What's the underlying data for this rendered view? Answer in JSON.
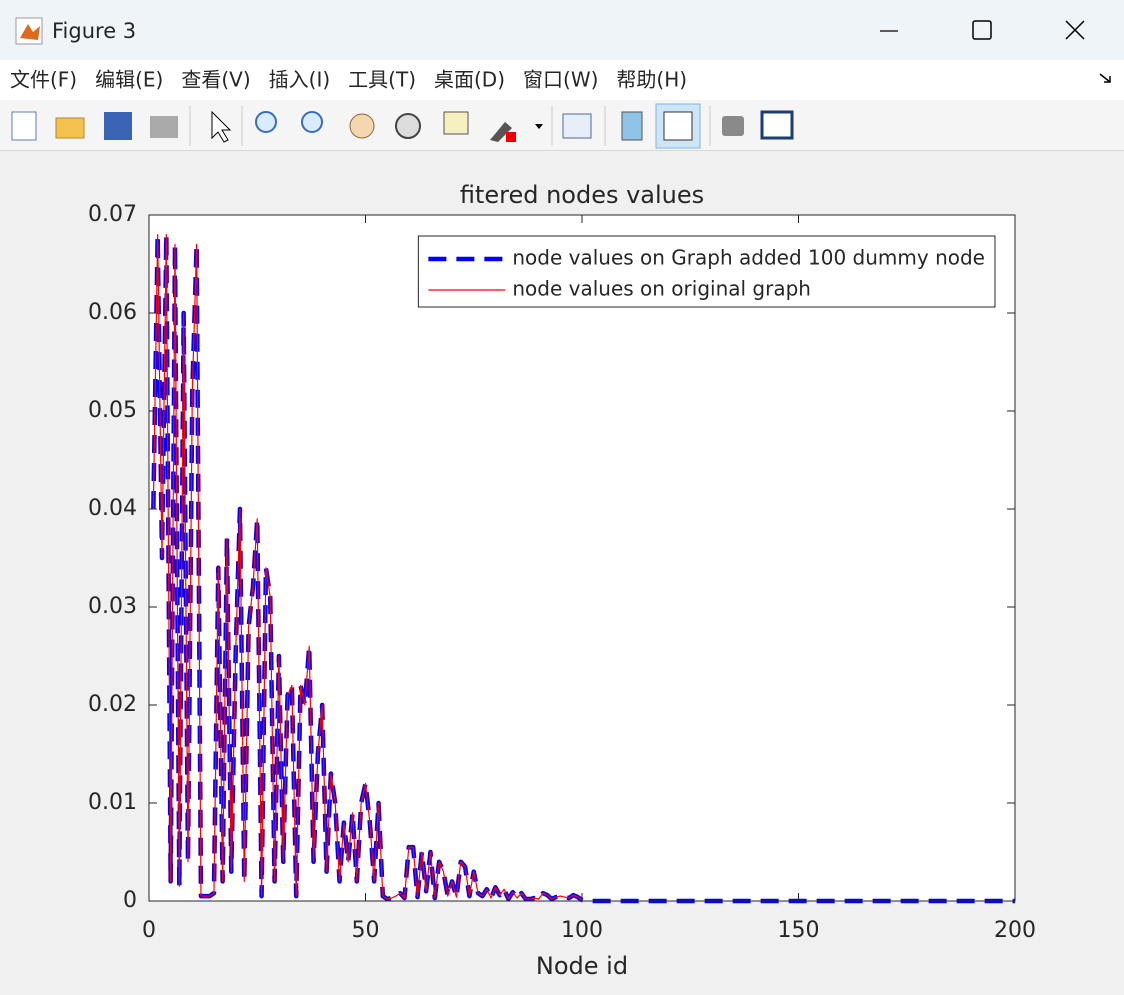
{
  "window": {
    "title": "Figure 3"
  },
  "menu": [
    "文件(F)",
    "编辑(E)",
    "查看(V)",
    "插入(I)",
    "工具(T)",
    "桌面(D)",
    "窗口(W)",
    "帮助(H)"
  ],
  "chart_data": {
    "type": "line",
    "title": "fitered nodes values",
    "xlabel": "Node id",
    "xlim": [
      0,
      200
    ],
    "ylim": [
      0,
      0.07
    ],
    "xticks": [
      0,
      50,
      100,
      150,
      200
    ],
    "yticks": [
      0,
      0.01,
      0.02,
      0.03,
      0.04,
      0.05,
      0.06,
      0.07
    ],
    "grid": false,
    "legend": "northeast",
    "x": [
      1,
      2,
      3,
      4,
      5,
      6,
      7,
      8,
      9,
      10,
      11,
      12,
      13,
      14,
      15,
      16,
      17,
      18,
      19,
      20,
      21,
      22,
      23,
      24,
      25,
      26,
      27,
      28,
      29,
      30,
      31,
      32,
      33,
      34,
      35,
      36,
      37,
      38,
      39,
      40,
      41,
      42,
      43,
      44,
      45,
      46,
      47,
      48,
      49,
      50,
      51,
      52,
      53,
      54,
      55,
      56,
      57,
      58,
      59,
      60,
      61,
      62,
      63,
      64,
      65,
      66,
      67,
      68,
      69,
      70,
      71,
      72,
      73,
      74,
      75,
      76,
      77,
      78,
      79,
      80,
      81,
      82,
      83,
      84,
      85,
      86,
      87,
      88,
      89,
      90,
      91,
      92,
      93,
      94,
      95,
      96,
      97,
      98,
      99,
      100,
      101,
      102,
      103,
      104,
      105,
      106,
      107,
      108,
      109,
      110,
      111,
      112,
      113,
      114,
      115,
      116,
      117,
      118,
      119,
      120,
      121,
      122,
      123,
      124,
      125,
      126,
      127,
      128,
      129,
      130,
      131,
      132,
      133,
      134,
      135,
      136,
      137,
      138,
      139,
      140,
      141,
      142,
      143,
      144,
      145,
      146,
      147,
      148,
      149,
      150,
      151,
      152,
      153,
      154,
      155,
      156,
      157,
      158,
      159,
      160,
      161,
      162,
      163,
      164,
      165,
      166,
      167,
      168,
      169,
      170,
      171,
      172,
      173,
      174,
      175,
      176,
      177,
      178,
      179,
      180,
      181,
      182,
      183,
      184,
      185,
      186,
      187,
      188,
      189,
      190,
      191,
      192,
      193,
      194,
      195,
      196,
      197,
      198,
      199,
      200
    ],
    "series": [
      {
        "name": "node values on Graph added 100 dummy node",
        "color": "#0000ff",
        "style": "dashed",
        "values": [
          0.04,
          0.068,
          0.035,
          0.068,
          0.002,
          0.067,
          0.0015,
          0.06,
          0.004,
          0.052,
          0.067,
          0.0005,
          0.0005,
          0.0005,
          0.0008,
          0.034,
          0.002,
          0.037,
          0.003,
          0.025,
          0.04,
          0.002,
          0.028,
          0.032,
          0.039,
          0.0005,
          0.034,
          0.031,
          0.002,
          0.025,
          0.004,
          0.021,
          0.022,
          0.0005,
          0.022,
          0.02,
          0.026,
          0.004,
          0.015,
          0.02,
          0.003,
          0.013,
          0.01,
          0.002,
          0.008,
          0.004,
          0.009,
          0.002,
          0.01,
          0.012,
          0.008,
          0.002,
          0.01,
          0.0005,
          0.0002,
          0.0003,
          0.0005,
          0.0008,
          0.0003,
          0.0055,
          0.0055,
          0.0004,
          0.005,
          0.001,
          0.005,
          0.0003,
          0.004,
          0.003,
          0.0005,
          0.002,
          0.0004,
          0.004,
          0.0035,
          0.0005,
          0.003,
          0.0008,
          0.0005,
          0.0012,
          0.0003,
          0.0014,
          0.0006,
          0.0012,
          0.0002,
          0.0009,
          0.0003,
          0.0008,
          0.0002,
          0.0002,
          0.0003,
          0.0002,
          0.0008,
          0.0006,
          0.0002,
          0.0004,
          0.0005,
          0.0004,
          0.0003,
          0.0006,
          0.0004,
          0.0001,
          0,
          0,
          0,
          0,
          0,
          0,
          0,
          0,
          0,
          0,
          0,
          0,
          0,
          0,
          0,
          0,
          0,
          0,
          0,
          0,
          0,
          0,
          0,
          0,
          0,
          0,
          0,
          0,
          0,
          0,
          0,
          0,
          0,
          0,
          0,
          0,
          0,
          0,
          0,
          0,
          0,
          0,
          0,
          0,
          0,
          0,
          0,
          0,
          0,
          0,
          0,
          0,
          0,
          0,
          0,
          0,
          0,
          0,
          0,
          0,
          0,
          0,
          0,
          0,
          0,
          0,
          0,
          0,
          0,
          0,
          0,
          0,
          0,
          0,
          0,
          0,
          0,
          0,
          0,
          0,
          0,
          0,
          0,
          0,
          0,
          0,
          0,
          0,
          0,
          0,
          0,
          0,
          0,
          0,
          0,
          0,
          0,
          0,
          0,
          0
        ]
      },
      {
        "name": "node values on original graph",
        "color": "#ff0000",
        "style": "solid",
        "values": [
          0.04,
          0.068,
          0.035,
          0.068,
          0.002,
          0.067,
          0.0015,
          0.06,
          0.004,
          0.052,
          0.067,
          0.0005,
          0.0005,
          0.0005,
          0.0008,
          0.034,
          0.002,
          0.037,
          0.003,
          0.025,
          0.04,
          0.002,
          0.028,
          0.032,
          0.039,
          0.0005,
          0.034,
          0.031,
          0.002,
          0.025,
          0.004,
          0.021,
          0.022,
          0.0005,
          0.022,
          0.02,
          0.026,
          0.004,
          0.015,
          0.02,
          0.003,
          0.013,
          0.01,
          0.002,
          0.008,
          0.004,
          0.009,
          0.002,
          0.01,
          0.012,
          0.008,
          0.002,
          0.01,
          0.0005,
          0.0002,
          0.0003,
          0.0005,
          0.0008,
          0.0003,
          0.0055,
          0.0055,
          0.0004,
          0.005,
          0.001,
          0.005,
          0.0003,
          0.004,
          0.003,
          0.0005,
          0.002,
          0.0004,
          0.004,
          0.0035,
          0.0005,
          0.003,
          0.0008,
          0.0005,
          0.0012,
          0.0003,
          0.0014,
          0.0006,
          0.0012,
          0.0002,
          0.0009,
          0.0003,
          0.0008,
          0.0002,
          0.0002,
          0.0003,
          0.0002,
          0.0008,
          0.0006,
          0.0002,
          0.0004,
          0.0005,
          0.0004,
          0.0003,
          0.0006,
          0.0004,
          0.0001,
          null,
          null,
          null,
          null,
          null,
          null,
          null,
          null,
          null,
          null,
          null,
          null,
          null,
          null,
          null,
          null,
          null,
          null,
          null,
          null,
          null,
          null,
          null,
          null,
          null,
          null,
          null,
          null,
          null,
          null,
          null,
          null,
          null,
          null,
          null,
          null,
          null,
          null,
          null,
          null,
          null,
          null,
          null,
          null,
          null,
          null,
          null,
          null,
          null,
          null,
          null,
          null,
          null,
          null,
          null,
          null,
          null,
          null,
          null,
          null,
          null,
          null,
          null,
          null,
          null,
          null,
          null,
          null,
          null,
          null,
          null,
          null,
          null,
          null,
          null,
          null,
          null,
          null,
          null,
          null,
          null,
          null,
          null,
          null,
          null,
          null,
          null,
          null,
          null,
          null,
          null,
          null,
          null,
          null,
          null,
          null,
          null,
          null,
          null,
          null
        ]
      }
    ]
  }
}
